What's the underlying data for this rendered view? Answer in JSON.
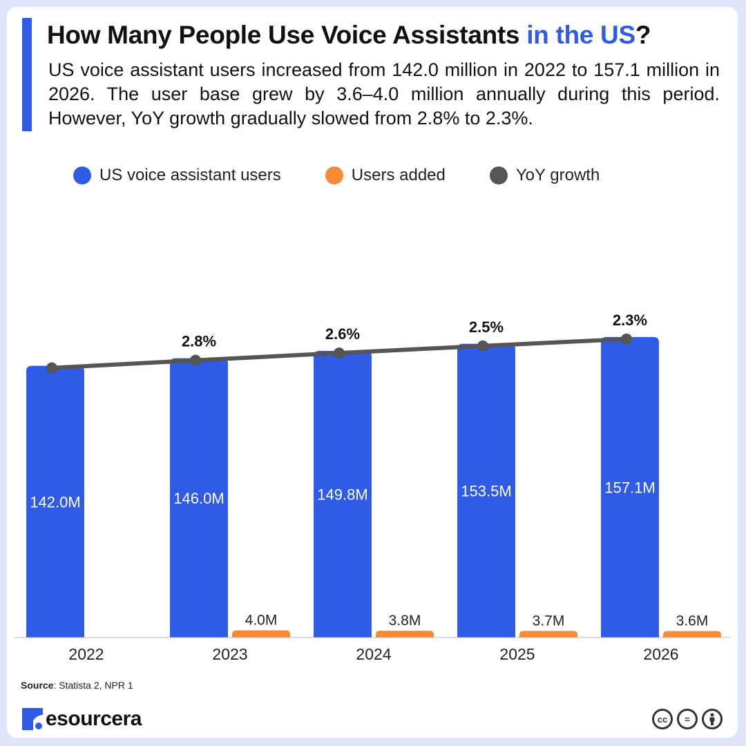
{
  "header": {
    "title_main": "How Many People Use Voice Assistants ",
    "title_accent": "in the US",
    "title_end": "?",
    "subtitle": "US voice assistant users increased from 142.0 million in 2022 to 157.1 million in 2026. The user base grew by 3.6–4.0 million annually during this period. However, YoY growth gradually slowed from 2.8% to 2.3%."
  },
  "legend": [
    {
      "label": "US voice assistant users",
      "color": "#2f5be7"
    },
    {
      "label": "Users added",
      "color": "#fb8a36"
    },
    {
      "label": "YoY growth",
      "color": "#555555"
    }
  ],
  "chart_data": {
    "type": "bar",
    "categories": [
      "2022",
      "2023",
      "2024",
      "2025",
      "2026"
    ],
    "series": [
      {
        "name": "US voice assistant users",
        "type": "bar",
        "color": "#2f5be7",
        "values": [
          142.0,
          146.0,
          149.8,
          153.5,
          157.1
        ],
        "labels": [
          "142.0M",
          "146.0M",
          "149.8M",
          "153.5M",
          "157.1M"
        ]
      },
      {
        "name": "Users added",
        "type": "bar",
        "color": "#fb8a36",
        "values": [
          null,
          4.0,
          3.8,
          3.7,
          3.6
        ],
        "labels": [
          "",
          "4.0M",
          "3.8M",
          "3.7M",
          "3.6M"
        ]
      },
      {
        "name": "YoY growth",
        "type": "line",
        "color": "#555555",
        "values": [
          null,
          2.8,
          2.6,
          2.5,
          2.3
        ],
        "labels": [
          "",
          "2.8%",
          "2.6%",
          "2.5%",
          "2.3%"
        ]
      }
    ],
    "ylim": [
      0,
      160
    ],
    "grid": false,
    "legend_position": "top"
  },
  "footer": {
    "source_label": "Source",
    "source_text": ": Statista 2, NPR 1",
    "brand": "esourcera",
    "license_icons": [
      "cc-icon",
      "nd-icon",
      "by-icon"
    ]
  }
}
